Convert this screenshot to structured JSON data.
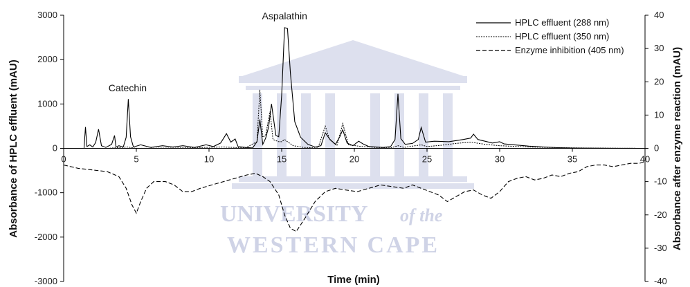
{
  "watermark": {
    "line1": "UNIVERSITY",
    "line1_suffix": "of the",
    "line2": "WESTERN CAPE",
    "color": "#cfd3e6"
  },
  "chart_data": {
    "type": "line",
    "title": "",
    "xlabel": "Time (min)",
    "ylabel_left": "Absorbance of HPLC effluent (mAU)",
    "ylabel_right": "Absorbance after enzyme reaction (mAU)",
    "xlim": [
      0,
      40
    ],
    "ylim_left": [
      -3000,
      3000
    ],
    "ylim_right": [
      -40,
      40
    ],
    "x_ticks": [
      0,
      5,
      10,
      15,
      20,
      25,
      30,
      35,
      40
    ],
    "y_ticks_left": [
      -3000,
      -2000,
      -1000,
      0,
      1000,
      2000,
      3000
    ],
    "y_ticks_right": [
      -40,
      -30,
      -20,
      -10,
      0,
      10,
      20,
      30,
      40
    ],
    "grid": false,
    "legend_position": "top-right",
    "annotations": [
      {
        "text": "Catechin",
        "x": 4.4,
        "y": 1100
      },
      {
        "text": "Aspalathin",
        "x": 15.2,
        "y": 2720
      }
    ],
    "series": [
      {
        "name": "HPLC effluent (288 nm)",
        "axis": "left",
        "style": "solid",
        "color": "#000000",
        "x": [
          0,
          1.4,
          1.5,
          1.6,
          1.8,
          2.0,
          2.2,
          2.4,
          2.6,
          2.9,
          3.3,
          3.5,
          3.6,
          3.8,
          4.1,
          4.3,
          4.45,
          4.6,
          4.8,
          5.3,
          6.0,
          6.8,
          7.5,
          8.2,
          9.0,
          9.8,
          10.3,
          10.8,
          11.2,
          11.5,
          11.8,
          12.0,
          12.5,
          13.0,
          13.3,
          13.5,
          13.7,
          13.9,
          14.1,
          14.3,
          14.6,
          14.8,
          15.0,
          15.2,
          15.4,
          15.6,
          15.9,
          16.3,
          16.8,
          17.3,
          17.7,
          18.0,
          18.3,
          18.7,
          19.0,
          19.2,
          19.5,
          19.9,
          20.3,
          20.6,
          21.0,
          21.5,
          22.0,
          22.5,
          22.8,
          23.0,
          23.2,
          23.5,
          24.0,
          24.4,
          24.6,
          24.9,
          25.5,
          26.5,
          27.5,
          28.0,
          28.2,
          28.5,
          29.5,
          30.0,
          30.3,
          31,
          32,
          33,
          34,
          35,
          36,
          37,
          38,
          39,
          40
        ],
        "y": [
          0,
          0,
          480,
          40,
          80,
          30,
          130,
          430,
          60,
          20,
          90,
          290,
          30,
          60,
          30,
          250,
          1110,
          260,
          30,
          80,
          20,
          60,
          30,
          60,
          20,
          80,
          40,
          120,
          330,
          140,
          210,
          40,
          20,
          10,
          150,
          650,
          90,
          230,
          480,
          1000,
          290,
          260,
          1200,
          2720,
          2700,
          1700,
          600,
          250,
          90,
          30,
          60,
          350,
          210,
          90,
          260,
          420,
          120,
          60,
          160,
          100,
          40,
          30,
          20,
          40,
          200,
          1230,
          220,
          90,
          110,
          200,
          470,
          140,
          160,
          150,
          200,
          230,
          320,
          200,
          120,
          150,
          100,
          80,
          50,
          30,
          15,
          8,
          5,
          3,
          2,
          1,
          0
        ]
      },
      {
        "name": "HPLC effluent (350 nm)",
        "axis": "left",
        "style": "dotted",
        "color": "#000000",
        "x": [
          0,
          3,
          4.4,
          5,
          8,
          11,
          12.5,
          13.3,
          13.5,
          13.7,
          13.9,
          14.2,
          14.4,
          14.8,
          15.0,
          15.2,
          15.4,
          15.8,
          16.5,
          17.5,
          18.0,
          18.3,
          18.8,
          19.2,
          19.6,
          20.5,
          21.5,
          22.5,
          23.0,
          23.4,
          24.0,
          24.6,
          25,
          26,
          27,
          28,
          29,
          30,
          32,
          34,
          36,
          38,
          40
        ],
        "y": [
          0,
          0,
          30,
          0,
          10,
          30,
          10,
          150,
          1320,
          250,
          300,
          830,
          200,
          150,
          150,
          200,
          150,
          60,
          20,
          10,
          500,
          200,
          60,
          560,
          80,
          40,
          20,
          10,
          60,
          20,
          50,
          80,
          40,
          70,
          110,
          140,
          90,
          60,
          30,
          15,
          8,
          3,
          0
        ]
      },
      {
        "name": "Enzyme inhibition (405 nm)",
        "axis": "right",
        "style": "dashed",
        "color": "#000000",
        "x": [
          0,
          1.0,
          2.0,
          3.0,
          3.8,
          4.3,
          4.7,
          5.0,
          5.3,
          5.7,
          6.2,
          7.0,
          7.6,
          8.2,
          8.8,
          9.4,
          10.2,
          11.0,
          11.8,
          12.6,
          13.2,
          13.7,
          14.2,
          14.8,
          15.2,
          15.6,
          16.0,
          16.6,
          17.3,
          18.0,
          18.7,
          19.4,
          20.2,
          21.0,
          21.8,
          22.6,
          23.4,
          24.0,
          24.6,
          25.2,
          25.8,
          26.4,
          27.0,
          27.6,
          28.2,
          28.8,
          29.4,
          30.0,
          30.6,
          31.2,
          31.8,
          32.4,
          33.0,
          33.6,
          34.2,
          34.8,
          35.4,
          36.0,
          36.6,
          37.2,
          37.8,
          38.4,
          39.0,
          39.6,
          40.0
        ],
        "y": [
          -5,
          -6,
          -6.5,
          -7,
          -8.5,
          -12,
          -17,
          -19.5,
          -16,
          -12,
          -10,
          -10,
          -11,
          -13,
          -13,
          -12,
          -11,
          -10,
          -9,
          -8,
          -7.5,
          -8.5,
          -10,
          -14,
          -20,
          -24,
          -25,
          -21,
          -16,
          -13,
          -12,
          -12.5,
          -13,
          -12,
          -11,
          -11.5,
          -12,
          -11,
          -12,
          -13,
          -14,
          -16,
          -14.5,
          -13,
          -12.5,
          -14,
          -15,
          -13,
          -10,
          -9,
          -8.5,
          -9.5,
          -9,
          -8,
          -8.5,
          -7.5,
          -7,
          -5.5,
          -5,
          -5,
          -5.5,
          -5,
          -4.5,
          -4.5,
          -4
        ]
      }
    ]
  }
}
